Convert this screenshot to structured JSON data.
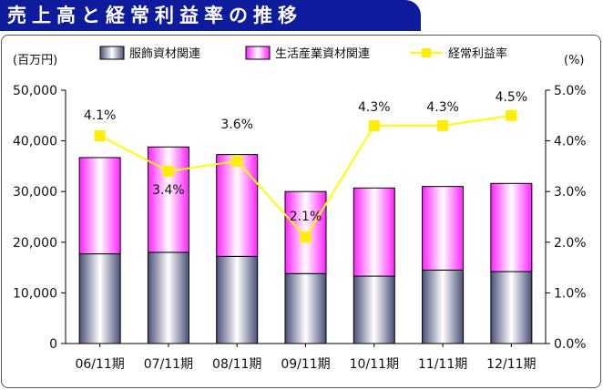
{
  "header": {
    "title": "売上高と経常利益率の推移"
  },
  "chart_data": {
    "type": "bar",
    "stacked": true,
    "categories": [
      "06/11期",
      "07/11期",
      "08/11期",
      "09/11期",
      "10/11期",
      "11/11期",
      "12/11期"
    ],
    "series": [
      {
        "name": "服飾資材関連",
        "kind": "bar",
        "axis": "left",
        "values": [
          17700,
          18000,
          17200,
          13800,
          13300,
          14500,
          14200
        ]
      },
      {
        "name": "生活産業資材関連",
        "kind": "bar",
        "axis": "left",
        "values": [
          19000,
          20800,
          20100,
          16200,
          17400,
          16500,
          17400
        ]
      },
      {
        "name": "経常利益率",
        "kind": "line",
        "axis": "right",
        "values": [
          4.1,
          3.4,
          3.6,
          2.1,
          4.3,
          4.3,
          4.5
        ],
        "labels": [
          "4.1%",
          "3.4%",
          "3.6%",
          "2.1%",
          "4.3%",
          "4.3%",
          "4.5%"
        ]
      }
    ],
    "y_left": {
      "unit": "(百万円)",
      "range": [
        0,
        50000
      ],
      "ticks": [
        "0",
        "10,000",
        "20,000",
        "30,000",
        "40,000",
        "50,000"
      ]
    },
    "y_right": {
      "unit": "(%)",
      "range": [
        0,
        5.0
      ],
      "ticks": [
        "0.0%",
        "1.0%",
        "2.0%",
        "3.0%",
        "4.0%",
        "5.0%"
      ]
    },
    "legend_position": "top",
    "colors": {
      "bar1": "#8a8fb3",
      "bar2": "#ff33ff",
      "line": "#ffff00",
      "marker": "#ffee00",
      "title_bg": "#0e1b9c"
    }
  }
}
